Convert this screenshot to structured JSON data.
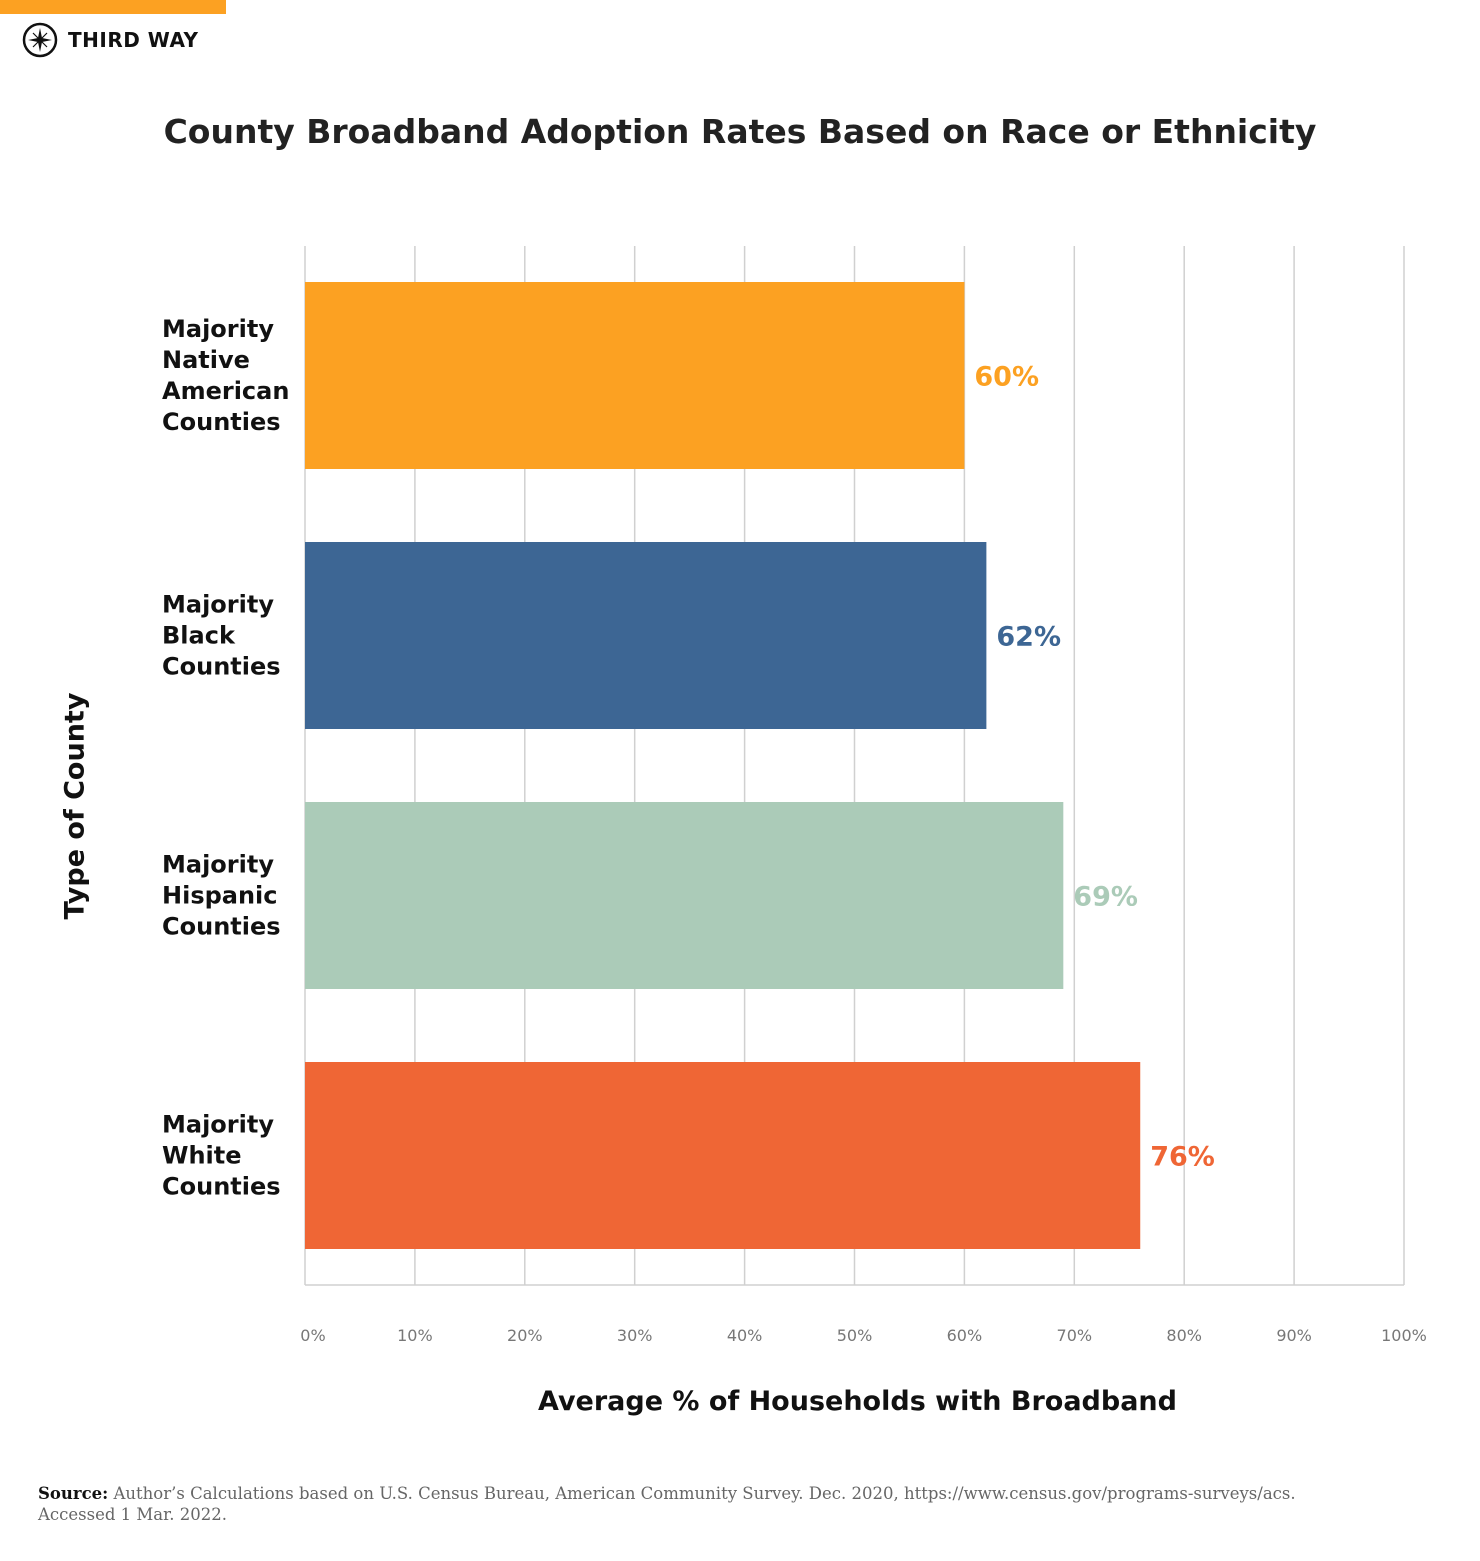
{
  "brand": {
    "name": "THIRD WAY",
    "accent": "#fca122"
  },
  "chart_data": {
    "type": "bar",
    "orientation": "horizontal",
    "title": "County Broadband Adoption Rates Based on Race or Ethnicity",
    "xlabel": "Average % of Households with Broadband",
    "ylabel": "Type of County",
    "categories": [
      [
        "Majority",
        "Native",
        "American",
        "Counties"
      ],
      [
        "Majority",
        "Black",
        "Counties"
      ],
      [
        "Majority",
        "Hispanic",
        "Counties"
      ],
      [
        "Majority",
        "White",
        "Counties"
      ]
    ],
    "values": [
      60,
      62,
      69,
      76
    ],
    "data_labels": [
      "60%",
      "62%",
      "69%",
      "76%"
    ],
    "colors": [
      "#fca122",
      "#3d6694",
      "#abcbb8",
      "#ef6635"
    ],
    "xlim": [
      0,
      100
    ],
    "xticks": [
      "0%",
      "10%",
      "20%",
      "30%",
      "40%",
      "50%",
      "60%",
      "70%",
      "80%",
      "90%",
      "100%"
    ],
    "grid": true
  },
  "source": {
    "label": "Source:",
    "text": "Author’s Calculations based on U.S. Census Bureau, American Community Survey. Dec. 2020, https://www.census.gov/programs-surveys/acs.",
    "text2": " Accessed 1 Mar. 2022."
  }
}
